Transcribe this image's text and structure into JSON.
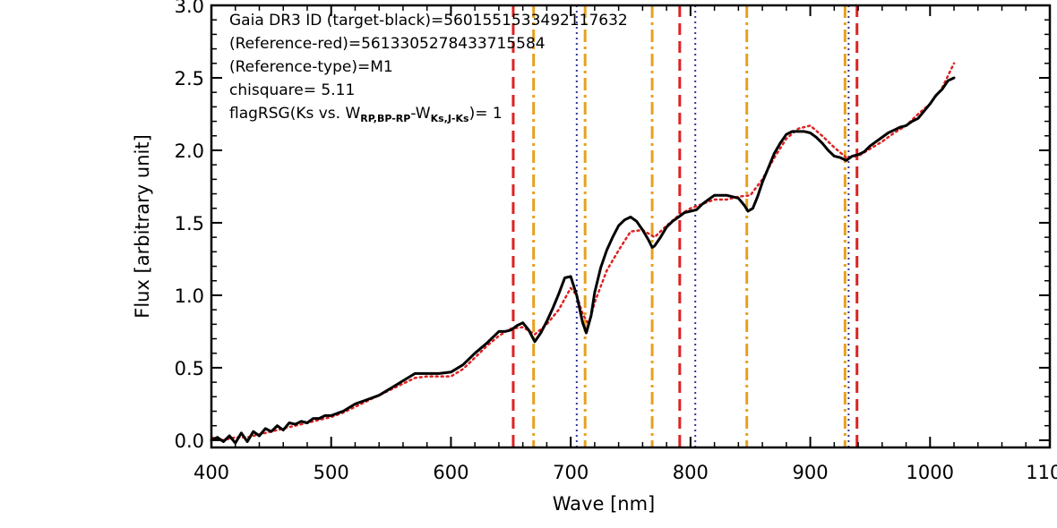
{
  "chart_data": {
    "type": "line",
    "title": "",
    "xlabel": "Wave [nm]",
    "ylabel": "Flux [arbitrary unit]",
    "xlim": [
      400,
      1100
    ],
    "ylim": [
      -0.05,
      3.0
    ],
    "x_ticks": [
      400,
      500,
      600,
      700,
      800,
      900,
      1000,
      1100
    ],
    "x_tick_labels": [
      "400",
      "500",
      "600",
      "700",
      "800",
      "900",
      "1000",
      "1100"
    ],
    "y_ticks": [
      0.0,
      0.5,
      1.0,
      1.5,
      2.0,
      2.5,
      3.0
    ],
    "y_tick_labels": [
      "0.0",
      "0.5",
      "1.0",
      "1.5",
      "2.0",
      "2.5",
      "3.0"
    ],
    "grid": false,
    "annotations": {
      "gaia_id": "Gaia DR3 ID (target-black)=5601551533492117632",
      "reference_red": "(Reference-red)=5613305278433715584",
      "reference_type": "(Reference-type)=M1",
      "chisquare": "chisquare= 5.11",
      "flag_prefix": "flagRSG(Ks vs. W",
      "flag_sub1": "RP,BP-RP",
      "flag_mid": "-W",
      "flag_sub2": "Ks,J-Ks",
      "flag_suffix": ")= 1"
    },
    "series": [
      {
        "color": "#000000",
        "style": "solid",
        "x": [
          400,
          405,
          410,
          415,
          420,
          425,
          430,
          435,
          440,
          445,
          450,
          455,
          460,
          465,
          470,
          475,
          480,
          485,
          490,
          495,
          500,
          510,
          520,
          530,
          540,
          550,
          560,
          570,
          580,
          590,
          600,
          610,
          620,
          630,
          640,
          645,
          650,
          655,
          660,
          665,
          670,
          675,
          680,
          685,
          690,
          695,
          700,
          705,
          710,
          713,
          717,
          720,
          725,
          730,
          735,
          740,
          745,
          750,
          755,
          760,
          765,
          768,
          770,
          775,
          780,
          785,
          790,
          795,
          800,
          805,
          810,
          815,
          820,
          825,
          830,
          835,
          840,
          845,
          848,
          852,
          856,
          860,
          865,
          870,
          875,
          880,
          885,
          890,
          895,
          900,
          905,
          910,
          915,
          920,
          925,
          930,
          935,
          940,
          945,
          950,
          955,
          960,
          965,
          970,
          975,
          980,
          985,
          990,
          995,
          1000,
          1005,
          1010,
          1015,
          1020
        ],
        "y": [
          0.0,
          0.02,
          -0.01,
          0.03,
          -0.02,
          0.05,
          -0.01,
          0.06,
          0.03,
          0.08,
          0.06,
          0.1,
          0.07,
          0.12,
          0.11,
          0.13,
          0.12,
          0.15,
          0.15,
          0.17,
          0.17,
          0.2,
          0.25,
          0.28,
          0.31,
          0.36,
          0.41,
          0.46,
          0.46,
          0.46,
          0.47,
          0.52,
          0.6,
          0.67,
          0.75,
          0.75,
          0.76,
          0.79,
          0.81,
          0.76,
          0.68,
          0.74,
          0.82,
          0.91,
          1.01,
          1.12,
          1.13,
          1.0,
          0.81,
          0.74,
          0.86,
          1.02,
          1.19,
          1.31,
          1.4,
          1.48,
          1.52,
          1.54,
          1.51,
          1.45,
          1.38,
          1.33,
          1.34,
          1.4,
          1.47,
          1.51,
          1.54,
          1.57,
          1.58,
          1.59,
          1.63,
          1.66,
          1.69,
          1.69,
          1.69,
          1.68,
          1.67,
          1.62,
          1.58,
          1.6,
          1.68,
          1.78,
          1.88,
          1.98,
          2.05,
          2.11,
          2.13,
          2.13,
          2.13,
          2.12,
          2.09,
          2.05,
          2.0,
          1.96,
          1.95,
          1.93,
          1.96,
          1.97,
          1.99,
          2.03,
          2.06,
          2.09,
          2.12,
          2.14,
          2.16,
          2.17,
          2.2,
          2.22,
          2.27,
          2.32,
          2.38,
          2.42,
          2.48,
          2.5
        ]
      },
      {
        "color": "#dd2222",
        "style": "dotted",
        "x": [
          400,
          410,
          420,
          430,
          440,
          450,
          460,
          470,
          480,
          490,
          500,
          510,
          520,
          530,
          540,
          550,
          560,
          570,
          580,
          590,
          600,
          610,
          620,
          630,
          640,
          650,
          660,
          670,
          680,
          690,
          700,
          705,
          710,
          715,
          720,
          730,
          740,
          750,
          760,
          770,
          780,
          790,
          800,
          810,
          820,
          830,
          840,
          850,
          860,
          870,
          880,
          890,
          900,
          910,
          920,
          930,
          940,
          950,
          960,
          970,
          980,
          990,
          1000,
          1010,
          1020
        ],
        "y": [
          0.02,
          0.0,
          0.02,
          0.02,
          0.04,
          0.06,
          0.08,
          0.1,
          0.12,
          0.14,
          0.16,
          0.19,
          0.23,
          0.27,
          0.31,
          0.35,
          0.39,
          0.43,
          0.44,
          0.44,
          0.44,
          0.49,
          0.57,
          0.65,
          0.72,
          0.77,
          0.78,
          0.73,
          0.8,
          0.9,
          1.05,
          1.0,
          0.87,
          0.8,
          0.95,
          1.17,
          1.31,
          1.44,
          1.45,
          1.4,
          1.48,
          1.55,
          1.6,
          1.63,
          1.66,
          1.66,
          1.68,
          1.69,
          1.8,
          1.95,
          2.08,
          2.15,
          2.17,
          2.1,
          2.02,
          1.95,
          1.96,
          2.01,
          2.06,
          2.12,
          2.17,
          2.25,
          2.32,
          2.43,
          2.6
        ]
      }
    ],
    "vertical_lines": [
      {
        "x": 652,
        "color": "#dd2222",
        "style": "dashed"
      },
      {
        "x": 791,
        "color": "#dd2222",
        "style": "dashed"
      },
      {
        "x": 939,
        "color": "#dd2222",
        "style": "dashed"
      },
      {
        "x": 669,
        "color": "#e8a020",
        "style": "dashdot"
      },
      {
        "x": 712,
        "color": "#e8a020",
        "style": "dashdot"
      },
      {
        "x": 768,
        "color": "#e8a020",
        "style": "dashdot"
      },
      {
        "x": 847,
        "color": "#e8a020",
        "style": "dashdot"
      },
      {
        "x": 929,
        "color": "#e8a020",
        "style": "dashdot"
      },
      {
        "x": 705,
        "color": "#333399",
        "style": "dotted"
      },
      {
        "x": 804,
        "color": "#333399",
        "style": "dotted"
      },
      {
        "x": 932,
        "color": "#333399",
        "style": "dotted"
      }
    ]
  }
}
